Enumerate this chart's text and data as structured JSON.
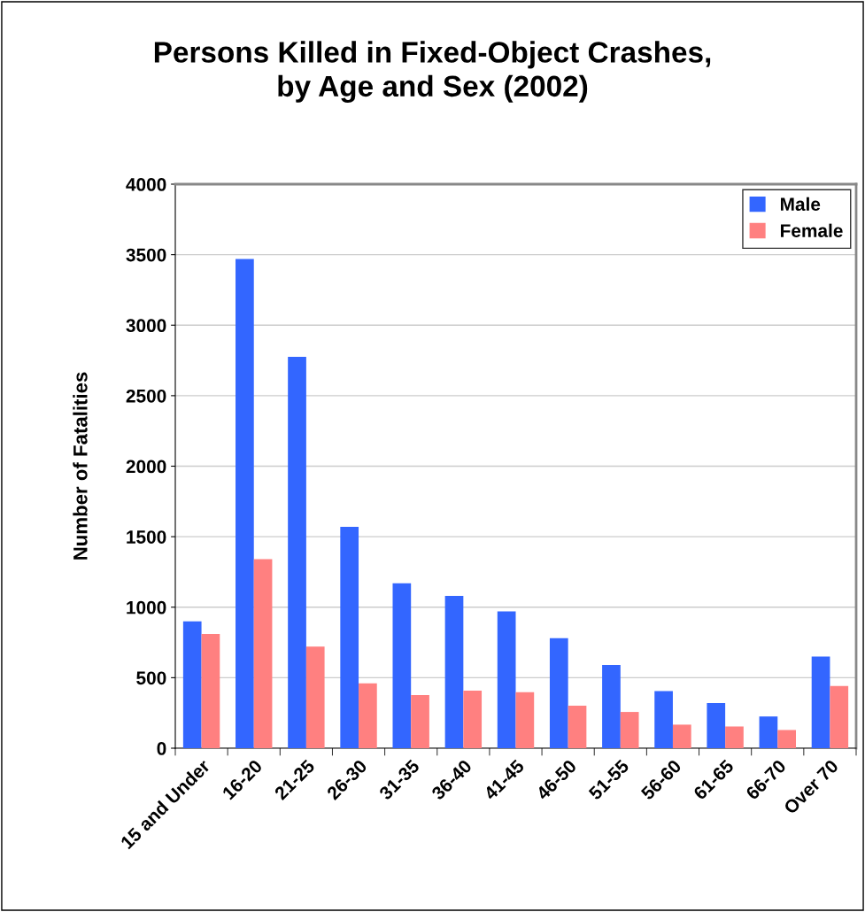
{
  "chart_data": {
    "type": "bar",
    "title": "Persons Killed in Fixed-Object Crashes,\nby Age and Sex (2002)",
    "ylabel": "Number of Fatalities",
    "categories": [
      "15 and Under",
      "16-20",
      "21-25",
      "26-30",
      "31-35",
      "36-40",
      "41-45",
      "46-50",
      "51-55",
      "56-60",
      "61-65",
      "66-70",
      "Over 70"
    ],
    "series": [
      {
        "name": "Male",
        "color": "#3366ff",
        "values": [
          900,
          3470,
          2775,
          1570,
          1170,
          1080,
          970,
          780,
          590,
          405,
          320,
          225,
          650
        ]
      },
      {
        "name": "Female",
        "color": "#ff8080",
        "values": [
          810,
          1340,
          720,
          460,
          377,
          408,
          397,
          302,
          257,
          167,
          154,
          129,
          441
        ]
      }
    ],
    "ylim": [
      0,
      4000
    ],
    "yticks": [
      0,
      500,
      1000,
      1500,
      2000,
      2500,
      3000,
      3500,
      4000
    ],
    "grid": "y",
    "legend": "top right"
  }
}
